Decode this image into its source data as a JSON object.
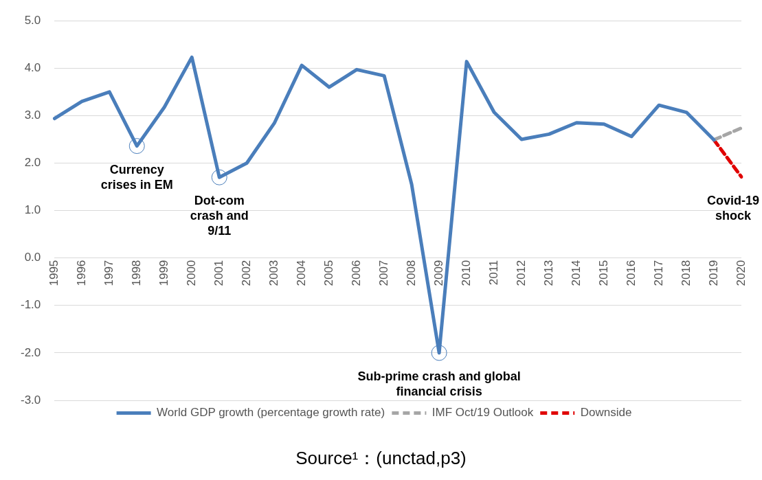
{
  "chart_data": {
    "type": "line",
    "categories": [
      "1995",
      "1996",
      "1997",
      "1998",
      "1999",
      "2000",
      "2001",
      "2002",
      "2003",
      "2004",
      "2005",
      "2006",
      "2007",
      "2008",
      "2009",
      "2010",
      "2011",
      "2012",
      "2013",
      "2014",
      "2015",
      "2016",
      "2017",
      "2018",
      "2019",
      "2020"
    ],
    "series": [
      {
        "name": "World GDP growth (percentage growth rate)",
        "color": "#4a7ebb",
        "line_style": "solid",
        "values": [
          2.94,
          3.3,
          3.5,
          2.36,
          3.18,
          4.23,
          1.7,
          2.0,
          2.84,
          4.06,
          3.6,
          3.97,
          3.84,
          1.55,
          -2.0,
          4.14,
          3.07,
          2.5,
          2.61,
          2.85,
          2.82,
          2.56,
          3.22,
          3.07,
          2.49,
          null
        ]
      },
      {
        "name": "IMF Oct/19 Outlook",
        "color": "#a6a6a6",
        "line_style": "dashed",
        "values": [
          null,
          null,
          null,
          null,
          null,
          null,
          null,
          null,
          null,
          null,
          null,
          null,
          null,
          null,
          null,
          null,
          null,
          null,
          null,
          null,
          null,
          null,
          null,
          null,
          2.49,
          2.74
        ]
      },
      {
        "name": "Downside",
        "color": "#e00000",
        "line_style": "dashed",
        "values": [
          null,
          null,
          null,
          null,
          null,
          null,
          null,
          null,
          null,
          null,
          null,
          null,
          null,
          null,
          null,
          null,
          null,
          null,
          null,
          null,
          null,
          null,
          null,
          null,
          2.49,
          1.71
        ]
      }
    ],
    "ylim": [
      -3.0,
      5.0
    ],
    "yticks": [
      {
        "value": -3,
        "label": "-3.0"
      },
      {
        "value": -2,
        "label": "-2.0"
      },
      {
        "value": -1,
        "label": "-1.0"
      },
      {
        "value": 0,
        "label": "0.0"
      },
      {
        "value": 1,
        "label": "1.0"
      },
      {
        "value": 2,
        "label": "2.0"
      },
      {
        "value": 3,
        "label": "3.0"
      },
      {
        "value": 4,
        "label": "4.0"
      },
      {
        "value": 5,
        "label": "5.0"
      }
    ],
    "grid": "y",
    "legend": "bottom",
    "marker": "none",
    "annotations": [
      {
        "text": "Currency crises in EM",
        "x": "1998",
        "y": 2.36
      },
      {
        "text": "Dot-com crash and 9/11",
        "x": "2001",
        "y": 1.7
      },
      {
        "text": "Sub-prime  crash and global financial crisis",
        "x": "2009",
        "y": -2.0
      },
      {
        "text": "Covid-19 shock",
        "x": "2020",
        "y": 1.71
      },
      "Source¹：(unctad,p3)"
    ]
  }
}
